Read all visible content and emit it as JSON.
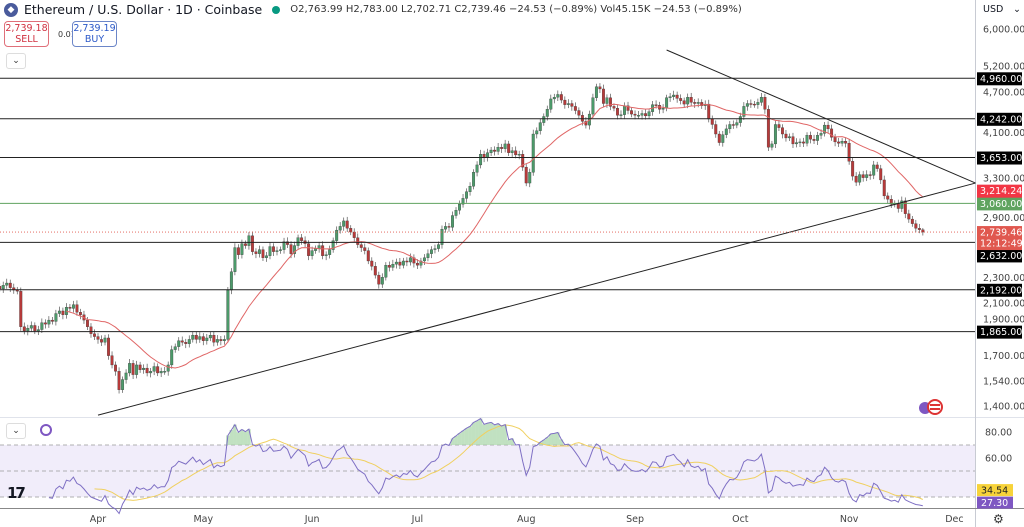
{
  "header": {
    "title": "Ethereum / U.S. Dollar · 1D · Coinbase",
    "ohlc": "O2,763.99 H2,783.00 L2,702.71 C2,739.46 −24.53 (−0.89%) Vol45.15K −24.53 (−0.89%)",
    "sell_price": "2,739.18",
    "sell_label": "SELL",
    "spread": "0.01",
    "buy_price": "2,739.19",
    "buy_label": "BUY",
    "currency": "USD"
  },
  "colors": {
    "up": "#4c9a6a",
    "down": "#b73a3a",
    "ma": "#e06666",
    "rsi": "#7e6fc4",
    "rsi_ma": "#f0d060",
    "level": "#222222",
    "support_green": "#5fa35f",
    "price": "#e0584f"
  },
  "icons": [
    "ethereum-logo-icon",
    "market-open-dot-icon",
    "chevron-down-icon",
    "rsi-indicator-icon",
    "tradingview-logo-icon",
    "settings-gear-icon",
    "currency-flag-icon"
  ],
  "chart_data": [
    {
      "type": "candlestick",
      "title": "Ethereum / U.S. Dollar · 1D · Coinbase",
      "y_scale": "log",
      "ylim": [
        1350,
        6300
      ],
      "last_candle": {
        "open": 2763.99,
        "high": 2783.0,
        "low": 2702.71,
        "close": 2739.46
      },
      "candles_by_month": [
        {
          "month": "2025-03",
          "first_day": 4,
          "closes": [
            2200,
            2230,
            2250,
            2210,
            2190,
            2180,
            1900,
            1870,
            1890,
            1910,
            1870,
            1880,
            1930,
            1920,
            1950,
            1940,
            2000,
            2020,
            1990,
            2050,
            2040,
            2070,
            2010,
            1990,
            1950,
            1900,
            1850,
            1830
          ]
        },
        {
          "month": "2025-04",
          "first_day": 1,
          "closes": [
            1810,
            1790,
            1820,
            1700,
            1640,
            1600,
            1490,
            1550,
            1590,
            1650,
            1580,
            1640,
            1610,
            1620,
            1590,
            1600,
            1630,
            1590,
            1600,
            1600,
            1640,
            1740,
            1760,
            1800,
            1790,
            1780,
            1810,
            1840,
            1810,
            1830
          ]
        },
        {
          "month": "2025-05",
          "first_day": 1,
          "closes": [
            1800,
            1820,
            1840,
            1790,
            1810,
            1800,
            1810,
            2190,
            2350,
            2580,
            2510,
            2620,
            2600,
            2700,
            2540,
            2520,
            2560,
            2480,
            2500,
            2590,
            2540,
            2550,
            2560,
            2640,
            2610,
            2520,
            2600,
            2680,
            2650,
            2620,
            2500
          ]
        },
        {
          "month": "2025-06",
          "first_day": 1,
          "closes": [
            2550,
            2570,
            2600,
            2500,
            2510,
            2560,
            2650,
            2760,
            2800,
            2860,
            2780,
            2740,
            2680,
            2610,
            2580,
            2550,
            2450,
            2400,
            2320,
            2240,
            2300,
            2410,
            2390,
            2420,
            2440,
            2410,
            2450,
            2440,
            2480,
            2430
          ]
        },
        {
          "month": "2025-07",
          "first_day": 1,
          "closes": [
            2410,
            2450,
            2480,
            2520,
            2560,
            2570,
            2610,
            2770,
            2800,
            2790,
            2920,
            2980,
            3050,
            3120,
            3200,
            3270,
            3450,
            3550,
            3700,
            3650,
            3720,
            3760,
            3740,
            3800,
            3780,
            3850,
            3720,
            3750,
            3690,
            3700,
            3520
          ]
        },
        {
          "month": "2025-08",
          "first_day": 1,
          "closes": [
            3310,
            3450,
            4000,
            4050,
            4180,
            4280,
            4400,
            4580,
            4610,
            4660,
            4560,
            4480,
            4500,
            4450,
            4380,
            4300,
            4200,
            4140,
            4320,
            4600,
            4800,
            4760,
            4500,
            4600,
            4450,
            4420,
            4300,
            4310,
            4460,
            4380,
            4320
          ]
        },
        {
          "month": "2025-09",
          "first_day": 1,
          "closes": [
            4300,
            4300,
            4330,
            4290,
            4360,
            4480,
            4470,
            4400,
            4420,
            4600,
            4620,
            4650,
            4590,
            4550,
            4490,
            4610,
            4520,
            4500,
            4520,
            4460,
            4490,
            4240,
            4150,
            4000,
            3870,
            3990,
            4080,
            4150,
            4140,
            4180
          ]
        },
        {
          "month": "2025-10",
          "first_day": 1,
          "closes": [
            4280,
            4450,
            4500,
            4490,
            4480,
            4520,
            4610,
            4400,
            3800,
            3850,
            4150,
            4100,
            4000,
            3940,
            3960,
            3850,
            3870,
            3880,
            3860,
            3980,
            3920,
            3900,
            3980,
            4010,
            4140,
            4080,
            3950,
            3880,
            3860,
            3890,
            3860
          ]
        },
        {
          "month": "2025-11",
          "first_day": 1,
          "closes": [
            3600,
            3400,
            3320,
            3420,
            3380,
            3420,
            3410,
            3550,
            3500,
            3350,
            3150,
            3110,
            3050,
            3060,
            3000,
            3090,
            2940,
            2880,
            2830,
            2780,
            2763.99,
            2739.46
          ]
        }
      ],
      "moving_average_period": 20,
      "horizontal_levels": [
        {
          "price": 4960,
          "label": "4,960.00",
          "color": "#222222"
        },
        {
          "price": 4242,
          "label": "4,242.00",
          "color": "#222222"
        },
        {
          "price": 3653,
          "label": "3,653.00",
          "color": "#222222"
        },
        {
          "price": 3060,
          "label": "3,060.00",
          "color": "#5fa35f"
        },
        {
          "price": 2632,
          "label": "2,632.00",
          "color": "#222222"
        },
        {
          "price": 2192,
          "label": "2,192.00",
          "color": "#222222"
        },
        {
          "price": 1865,
          "label": "1,865.00",
          "color": "#222222"
        }
      ],
      "trendlines": [
        {
          "from": {
            "date": "2025-09-10",
            "price": 5533
          },
          "to": {
            "date": "2025-12-07",
            "price": 3310
          }
        },
        {
          "from": {
            "date": "2025-04-01",
            "price": 1351
          },
          "to": {
            "date": "2025-12-07",
            "price": 3310
          }
        }
      ],
      "y_ticks": [
        "6,000.00",
        "5,200.00",
        "4,700.00",
        "4,100.00",
        "3,300.00",
        "2,900.00",
        "2,300.00",
        "2,100.00",
        "1,900.00",
        "1,700.00",
        "1,540.00",
        "1,400.00"
      ],
      "y_tick_values": [
        6000,
        5200,
        4700,
        4100,
        3300,
        2900,
        2300,
        2100,
        1900,
        1700,
        1540,
        1400
      ],
      "price_labels": {
        "ma_value": "3,214.24",
        "ma_value_num": 3214.24,
        "last_price": "2,739.46",
        "countdown": "12:12:49"
      },
      "x_ticks": [
        {
          "label": "Apr",
          "date": "2025-04-01"
        },
        {
          "label": "May",
          "date": "2025-05-01"
        },
        {
          "label": "Jun",
          "date": "2025-06-01"
        },
        {
          "label": "Jul",
          "date": "2025-07-01"
        },
        {
          "label": "Aug",
          "date": "2025-08-01"
        },
        {
          "label": "Sep",
          "date": "2025-09-01"
        },
        {
          "label": "Oct",
          "date": "2025-10-01"
        },
        {
          "label": "Nov",
          "date": "2025-11-01"
        },
        {
          "label": "Dec",
          "date": "2025-12-01"
        }
      ]
    },
    {
      "type": "line",
      "indicator": "RSI",
      "period": 14,
      "ylim": [
        25,
        90
      ],
      "bands": [
        30,
        50,
        70
      ],
      "y_ticks": [
        "80.00",
        "60.00"
      ],
      "y_tick_values": [
        80,
        60
      ],
      "current_labels": {
        "rsi_ma": "34.54",
        "rsi": "27.30"
      },
      "current_values": {
        "rsi_ma": 34.54,
        "rsi": 27.3
      }
    }
  ]
}
